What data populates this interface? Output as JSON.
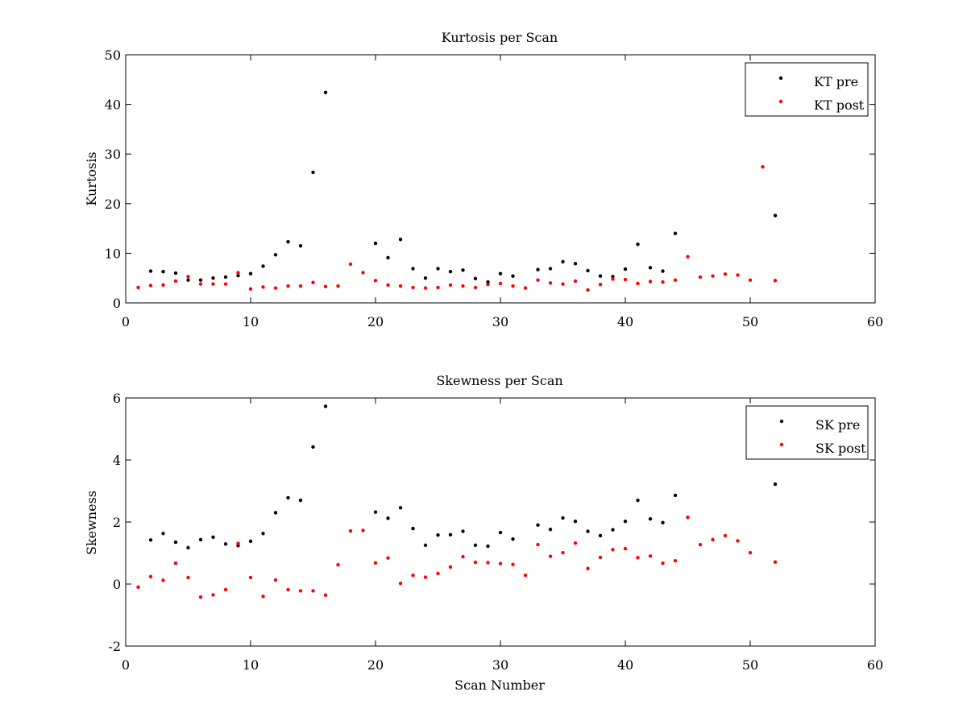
{
  "colors": {
    "pre": "#000000",
    "post": "#ff0000",
    "axis": "#000000",
    "background": "#ffffff"
  },
  "chart_data": [
    {
      "type": "scatter",
      "title": "Kurtosis per Scan",
      "xlabel": "",
      "ylabel": "Kurtosis",
      "xlim": [
        0,
        60
      ],
      "ylim": [
        0,
        50
      ],
      "xticks": [
        0,
        10,
        20,
        30,
        40,
        50,
        60
      ],
      "yticks": [
        0,
        10,
        20,
        30,
        40,
        50
      ],
      "grid": false,
      "legend_position": "top-right",
      "series": [
        {
          "name": "KT pre",
          "color": "#000000",
          "x": [
            2,
            3,
            4,
            5,
            6,
            7,
            8,
            9,
            10,
            11,
            12,
            13,
            14,
            15,
            16,
            20,
            21,
            22,
            23,
            24,
            25,
            26,
            27,
            28,
            29,
            30,
            31,
            33,
            34,
            35,
            36,
            37,
            38,
            39,
            40,
            41,
            42,
            43,
            44,
            52
          ],
          "y": [
            6.4,
            6.3,
            6.0,
            4.6,
            4.6,
            5.0,
            5.2,
            5.5,
            5.9,
            7.4,
            9.7,
            12.3,
            11.5,
            26.3,
            42.4,
            12.0,
            9.1,
            12.8,
            6.9,
            5.0,
            6.9,
            6.3,
            6.6,
            4.9,
            4.2,
            5.9,
            5.4,
            6.7,
            6.9,
            8.3,
            7.9,
            6.5,
            5.4,
            5.3,
            6.8,
            11.8,
            7.1,
            6.4,
            14.0,
            17.6
          ]
        },
        {
          "name": "KT post",
          "color": "#ff0000",
          "x": [
            1,
            2,
            3,
            4,
            5,
            6,
            7,
            8,
            9,
            10,
            11,
            12,
            13,
            14,
            15,
            16,
            17,
            18,
            19,
            20,
            21,
            22,
            23,
            24,
            25,
            26,
            27,
            28,
            29,
            30,
            31,
            32,
            33,
            34,
            35,
            36,
            37,
            38,
            39,
            40,
            41,
            42,
            43,
            44,
            45,
            46,
            47,
            48,
            49,
            50,
            51,
            52
          ],
          "y": [
            3.1,
            3.5,
            3.6,
            4.4,
            5.3,
            3.8,
            3.8,
            3.8,
            6.1,
            2.8,
            3.2,
            3.0,
            3.4,
            3.4,
            4.1,
            3.3,
            3.4,
            7.8,
            6.1,
            4.5,
            3.6,
            3.4,
            3.1,
            3.0,
            3.1,
            3.6,
            3.4,
            3.1,
            3.7,
            3.9,
            3.4,
            3.0,
            4.6,
            4.0,
            3.8,
            4.4,
            2.6,
            3.7,
            4.8,
            4.7,
            3.9,
            4.3,
            4.2,
            4.6,
            9.3,
            5.2,
            5.4,
            5.8,
            5.6,
            4.6,
            27.4,
            4.5
          ]
        }
      ]
    },
    {
      "type": "scatter",
      "title": "Skewness per Scan",
      "xlabel": "Scan Number",
      "ylabel": "Skewness",
      "xlim": [
        0,
        60
      ],
      "ylim": [
        -2,
        6
      ],
      "xticks": [
        0,
        10,
        20,
        30,
        40,
        50,
        60
      ],
      "yticks": [
        -2,
        0,
        2,
        4,
        6
      ],
      "grid": false,
      "legend_position": "top-right",
      "series": [
        {
          "name": "SK pre",
          "color": "#000000",
          "x": [
            2,
            3,
            4,
            5,
            6,
            7,
            8,
            9,
            10,
            11,
            12,
            13,
            14,
            15,
            16,
            20,
            21,
            22,
            23,
            24,
            25,
            26,
            27,
            28,
            29,
            30,
            31,
            33,
            34,
            35,
            36,
            37,
            38,
            39,
            40,
            41,
            42,
            43,
            44,
            52
          ],
          "y": [
            1.42,
            1.63,
            1.35,
            1.17,
            1.43,
            1.51,
            1.29,
            1.24,
            1.38,
            1.63,
            2.3,
            2.78,
            2.7,
            4.42,
            5.73,
            2.32,
            2.12,
            2.46,
            1.79,
            1.25,
            1.58,
            1.59,
            1.7,
            1.25,
            1.22,
            1.66,
            1.45,
            1.9,
            1.76,
            2.13,
            2.02,
            1.7,
            1.56,
            1.75,
            2.02,
            2.7,
            2.1,
            1.98,
            2.86,
            3.22
          ]
        },
        {
          "name": "SK post",
          "color": "#ff0000",
          "x": [
            1,
            2,
            3,
            4,
            5,
            6,
            7,
            8,
            9,
            10,
            11,
            12,
            13,
            14,
            15,
            16,
            17,
            18,
            19,
            20,
            21,
            22,
            23,
            24,
            25,
            26,
            27,
            28,
            29,
            30,
            31,
            32,
            33,
            34,
            35,
            36,
            37,
            38,
            39,
            40,
            41,
            42,
            43,
            44,
            45,
            46,
            47,
            48,
            49,
            50,
            52
          ],
          "y": [
            -0.1,
            0.24,
            0.12,
            0.67,
            0.21,
            -0.42,
            -0.35,
            -0.18,
            1.31,
            0.21,
            -0.4,
            0.13,
            -0.18,
            -0.22,
            -0.22,
            -0.36,
            0.62,
            1.71,
            1.73,
            0.68,
            0.84,
            0.02,
            0.28,
            0.22,
            0.34,
            0.55,
            0.88,
            0.7,
            0.69,
            0.66,
            0.63,
            0.28,
            1.27,
            0.89,
            1.01,
            1.32,
            0.5,
            0.86,
            1.11,
            1.14,
            0.85,
            0.9,
            0.67,
            0.75,
            2.15,
            1.27,
            1.43,
            1.56,
            1.39,
            1.01,
            0.71
          ]
        }
      ]
    }
  ]
}
